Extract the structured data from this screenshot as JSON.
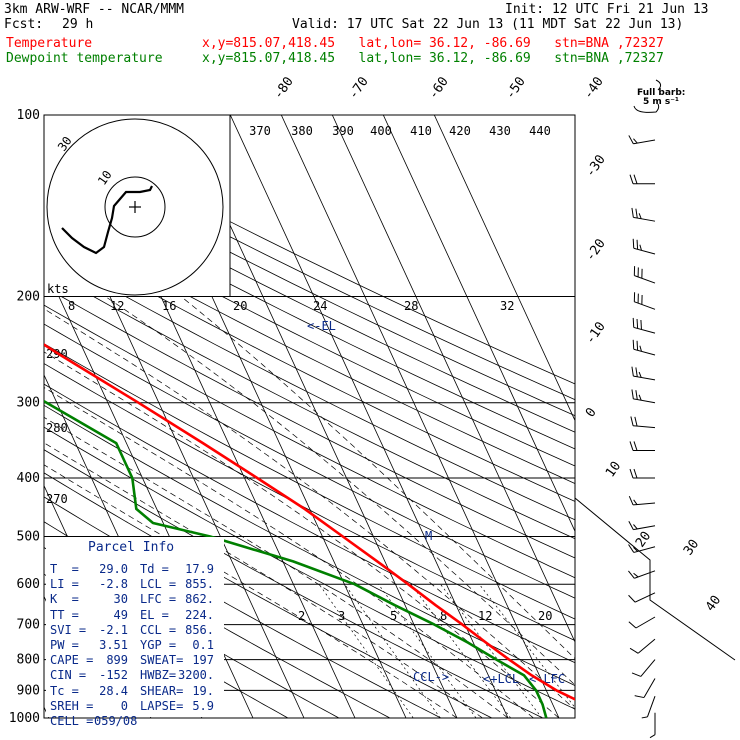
{
  "header": {
    "model": "3km ARW-WRF -- NCAR/MMM",
    "init": "Init: 12 UTC Fri 21 Jun 13",
    "fcst_label": "Fcst:",
    "fcst_value": "29 h",
    "valid": "Valid: 17 UTC Sat 22 Jun 13 (11 MDT Sat 22 Jun 13)",
    "temp_label": "Temperature",
    "dew_label": "Dewpoint temperature",
    "location": "x,y=815.07,418.45   lat,lon= 36.12, -86.69   stn=BNA ,72327"
  },
  "colors": {
    "temperature": "#ff0000",
    "dewpoint": "#008000",
    "text": "#000000",
    "info": "#0a2a8a"
  },
  "barb_key": {
    "line1": "Full barb:",
    "line2": "5 m s⁻¹"
  },
  "parcel_info": {
    "title": "Parcel Info",
    "rows": [
      [
        "T  =",
        "29.0",
        "Td =",
        "17.9"
      ],
      [
        "LI =",
        "-2.8",
        "LCL =",
        "855."
      ],
      [
        "K  =",
        "30",
        "LFC =",
        "862."
      ],
      [
        "TT =",
        "49",
        "EL =",
        "224."
      ],
      [
        "SVI =",
        "-2.1",
        "CCL =",
        "856."
      ],
      [
        "PW =",
        "3.51",
        "YGP =",
        "0.1"
      ],
      [
        "CAPE =",
        "899",
        "SWEAT=",
        "197"
      ],
      [
        "CIN =",
        "-152",
        "HWBZ=",
        "3200."
      ],
      [
        "Tc =",
        "28.4",
        "SHEAR=",
        "19."
      ],
      [
        "SREH =",
        "0",
        "LAPSE=",
        "5.9"
      ],
      [
        "CELL =",
        "059/08",
        "",
        ""
      ]
    ]
  },
  "chart_data": {
    "type": "line",
    "diagram": "skew-T log-p",
    "y_axis_pressure_levels": [
      100,
      200,
      300,
      400,
      500,
      600,
      700,
      800,
      900,
      1000
    ],
    "temp_tick_labels": [
      "-80",
      "-70",
      "-60",
      "-50",
      "-40",
      "-30",
      "-20",
      "-10",
      "0",
      "10",
      "20",
      "30",
      "40"
    ],
    "theta_labels": [
      "370",
      "380",
      "390",
      "400",
      "410",
      "420",
      "430",
      "440"
    ],
    "theta_alt_labels": [
      "290",
      "280",
      "270"
    ],
    "mixing_ratio_labels": [
      "2",
      "3",
      "5",
      "8",
      "12",
      "20"
    ],
    "hodograph_speed_labels": [
      "kts",
      "8",
      "12",
      "16",
      "20",
      "24",
      "28",
      "32"
    ],
    "hodograph_ring_labels": [
      "30",
      "10"
    ],
    "annotations": {
      "el": "<-EL",
      "ccl": "CCL->",
      "lcl": "<+LCL",
      "lfc": "<-LFC",
      "m": "M"
    },
    "series": [
      {
        "name": "Temperature",
        "points": [
          [
            1000,
            31
          ],
          [
            950,
            26.5
          ],
          [
            900,
            22
          ],
          [
            850,
            18.5
          ],
          [
            800,
            15.5
          ],
          [
            750,
            12.5
          ],
          [
            700,
            9.5
          ],
          [
            650,
            6
          ],
          [
            600,
            2.5
          ],
          [
            550,
            -1.5
          ],
          [
            500,
            -6
          ],
          [
            450,
            -11
          ],
          [
            400,
            -17.5
          ],
          [
            350,
            -25
          ],
          [
            300,
            -34
          ],
          [
            250,
            -45
          ],
          [
            225,
            -51
          ],
          [
            200,
            -56
          ],
          [
            175,
            -59
          ],
          [
            150,
            -61.5
          ],
          [
            125,
            -65
          ],
          [
            100,
            -68
          ]
        ]
      },
      {
        "name": "Dewpoint temperature",
        "points": [
          [
            1000,
            17.5
          ],
          [
            950,
            18
          ],
          [
            900,
            18
          ],
          [
            850,
            17
          ],
          [
            800,
            13
          ],
          [
            750,
            9
          ],
          [
            700,
            4
          ],
          [
            650,
            -2
          ],
          [
            600,
            -8
          ],
          [
            550,
            -18
          ],
          [
            500,
            -32
          ],
          [
            475,
            -42
          ],
          [
            450,
            -44
          ],
          [
            400,
            -42
          ],
          [
            350,
            -42
          ],
          [
            300,
            -52
          ],
          [
            250,
            -64
          ],
          [
            225,
            -68
          ],
          [
            200,
            -72
          ],
          [
            175,
            -75
          ],
          [
            150,
            -79
          ],
          [
            125,
            -82
          ],
          [
            100,
            -86
          ]
        ]
      }
    ],
    "wind_barbs": [
      {
        "p": 110,
        "dir": 260,
        "kt": 15
      },
      {
        "p": 130,
        "dir": 270,
        "kt": 20
      },
      {
        "p": 150,
        "dir": 280,
        "kt": 25
      },
      {
        "p": 170,
        "dir": 285,
        "kt": 25
      },
      {
        "p": 190,
        "dir": 290,
        "kt": 30
      },
      {
        "p": 210,
        "dir": 290,
        "kt": 30
      },
      {
        "p": 230,
        "dir": 285,
        "kt": 30
      },
      {
        "p": 250,
        "dir": 285,
        "kt": 25
      },
      {
        "p": 275,
        "dir": 280,
        "kt": 25
      },
      {
        "p": 300,
        "dir": 280,
        "kt": 25
      },
      {
        "p": 330,
        "dir": 275,
        "kt": 20
      },
      {
        "p": 360,
        "dir": 270,
        "kt": 20
      },
      {
        "p": 400,
        "dir": 270,
        "kt": 20
      },
      {
        "p": 440,
        "dir": 265,
        "kt": 15
      },
      {
        "p": 480,
        "dir": 260,
        "kt": 15
      },
      {
        "p": 520,
        "dir": 255,
        "kt": 15
      },
      {
        "p": 570,
        "dir": 250,
        "kt": 15
      },
      {
        "p": 620,
        "dir": 245,
        "kt": 10
      },
      {
        "p": 680,
        "dir": 240,
        "kt": 10
      },
      {
        "p": 740,
        "dir": 230,
        "kt": 10
      },
      {
        "p": 800,
        "dir": 220,
        "kt": 10
      },
      {
        "p": 860,
        "dir": 210,
        "kt": 10
      },
      {
        "p": 920,
        "dir": 200,
        "kt": 5
      },
      {
        "p": 980,
        "dir": 180,
        "kt": 5
      }
    ]
  }
}
